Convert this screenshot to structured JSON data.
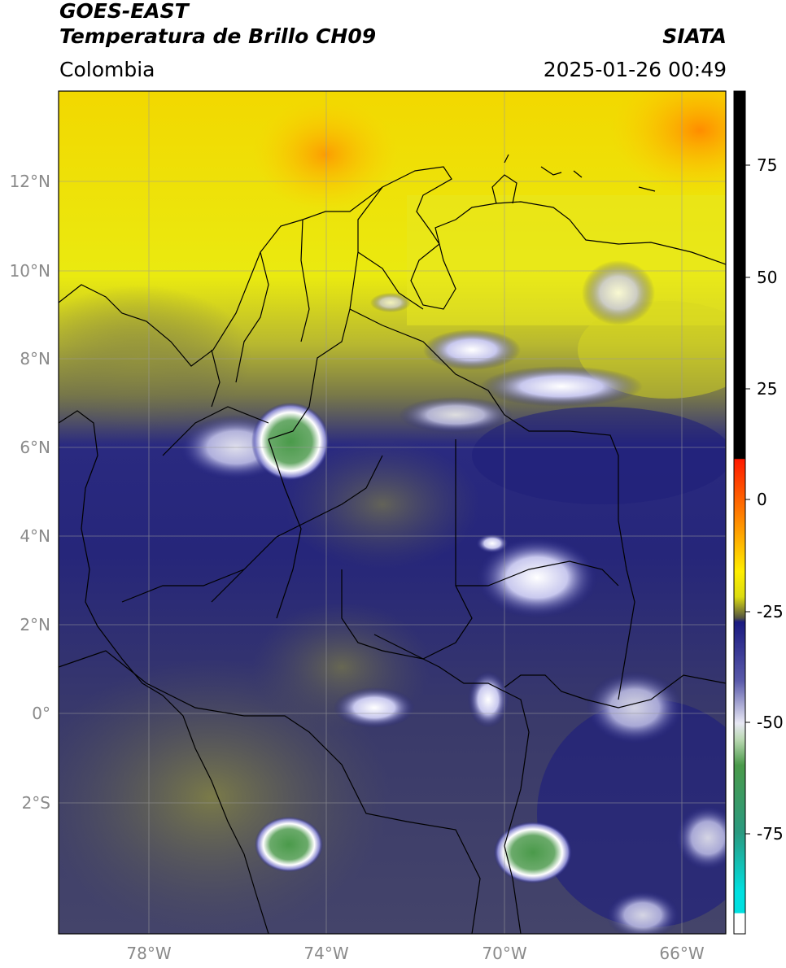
{
  "header": {
    "satellite": "GOES-EAST",
    "product": "Temperatura de Brillo CH09",
    "brand": "SIATA",
    "region": "Colombia",
    "datetime": "2025-01-26 00:49"
  },
  "map": {
    "lat_ticks": [
      "12°N",
      "10°N",
      "8°N",
      "6°N",
      "4°N",
      "2°N",
      "0°",
      "2°S"
    ],
    "lon_ticks": [
      "78°W",
      "74°W",
      "70°W",
      "66°W"
    ],
    "gridlines": true
  },
  "colorbar": {
    "ticks": [
      "75",
      "50",
      "25",
      "0",
      "-25",
      "-50",
      "-75"
    ],
    "colors": {
      "warmest": "#000000",
      "red": "#ff2200",
      "orange": "#ff9900",
      "yellow": "#ffff00",
      "olive": "#8a8a40",
      "navy": "#1a1a80",
      "white": "#ffffff",
      "green": "#3a8a3a",
      "cyan": "#00e0e0"
    }
  }
}
